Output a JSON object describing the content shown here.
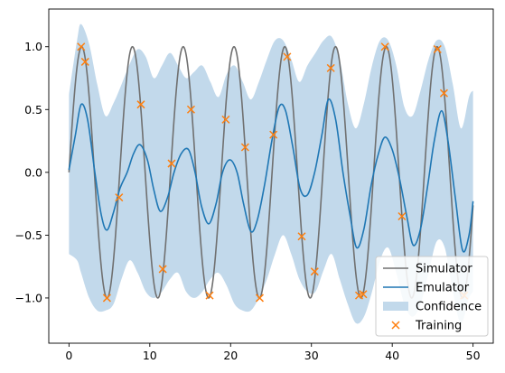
{
  "chart_data": {
    "type": "line",
    "title": "",
    "xlabel": "",
    "ylabel": "",
    "xlim": [
      -2.5,
      52.5
    ],
    "ylim": [
      -1.36,
      1.3
    ],
    "xticks": [
      0,
      10,
      20,
      30,
      40,
      50
    ],
    "yticks": [
      -1.0,
      -0.5,
      0.0,
      0.5,
      1.0
    ],
    "xtick_labels": [
      "0",
      "10",
      "20",
      "30",
      "40",
      "50"
    ],
    "ytick_labels": [
      "−1.0",
      "−0.5",
      "0.0",
      "0.5",
      "1.0"
    ],
    "grid": false,
    "legend_position": "lower-right",
    "simulator": {
      "name": "Simulator",
      "color": "#707070",
      "function": "sin",
      "frequency": 1.0,
      "x_range": [
        0,
        50
      ]
    },
    "emulator": {
      "name": "Emulator",
      "color": "#1f77b4",
      "x": [
        0,
        0.8,
        1.5,
        2.3,
        3.2,
        4.0,
        4.7,
        5.5,
        6.3,
        7.2,
        8.0,
        8.8,
        9.7,
        10.5,
        11.3,
        12.2,
        13.0,
        13.9,
        14.8,
        15.6,
        16.4,
        17.3,
        18.2,
        19.0,
        19.9,
        20.8,
        21.6,
        22.5,
        23.3,
        24.2,
        25.1,
        26.0,
        26.8,
        27.7,
        28.6,
        29.5,
        30.4,
        31.3,
        32.1,
        33.0,
        33.9,
        34.8,
        35.6,
        36.5,
        37.4,
        38.3,
        39.1,
        40.0,
        40.9,
        41.8,
        42.6,
        43.5,
        44.4,
        45.2,
        46.1,
        46.9,
        47.8,
        48.7,
        49.5,
        50.0
      ],
      "y": [
        0.02,
        0.3,
        0.54,
        0.42,
        0.0,
        -0.34,
        -0.46,
        -0.32,
        -0.13,
        0.0,
        0.15,
        0.22,
        0.1,
        -0.14,
        -0.31,
        -0.2,
        0.0,
        0.15,
        0.18,
        0.0,
        -0.27,
        -0.41,
        -0.25,
        0.0,
        0.1,
        0.0,
        -0.25,
        -0.47,
        -0.38,
        -0.1,
        0.25,
        0.52,
        0.49,
        0.2,
        -0.13,
        -0.18,
        0.0,
        0.3,
        0.58,
        0.42,
        0.0,
        -0.35,
        -0.6,
        -0.45,
        -0.1,
        0.15,
        0.28,
        0.18,
        -0.05,
        -0.35,
        -0.58,
        -0.45,
        -0.1,
        0.25,
        0.49,
        0.25,
        -0.2,
        -0.62,
        -0.5,
        -0.23
      ],
      "width": 1.6
    },
    "confidence": {
      "name": "Confidence",
      "color": "#c2d9eb",
      "x": [
        0,
        1.0,
        1.5,
        2.5,
        3.5,
        4.5,
        5.5,
        6.5,
        7.5,
        8.5,
        9.5,
        10.5,
        11.5,
        12.5,
        13.5,
        14.5,
        15.5,
        16.5,
        17.5,
        18.5,
        19.5,
        20.5,
        21.5,
        22.5,
        23.5,
        24.5,
        25.5,
        26.5,
        27.5,
        28.5,
        29.5,
        30.5,
        31.5,
        32.5,
        33.5,
        34.5,
        35.5,
        36.5,
        37.5,
        38.5,
        39.5,
        40.5,
        41.5,
        42.5,
        43.5,
        44.5,
        45.5,
        46.5,
        47.5,
        48.5,
        49.5,
        50.0
      ],
      "upper": [
        0.62,
        1.05,
        1.18,
        1.02,
        0.7,
        0.45,
        0.55,
        0.7,
        0.86,
        0.98,
        0.92,
        0.75,
        0.85,
        0.95,
        0.85,
        0.75,
        0.8,
        0.85,
        0.72,
        0.6,
        0.78,
        0.85,
        0.72,
        0.58,
        0.72,
        0.9,
        1.05,
        1.05,
        0.9,
        0.72,
        0.85,
        0.95,
        1.05,
        1.08,
        0.9,
        0.55,
        0.35,
        0.55,
        0.85,
        1.05,
        1.05,
        0.85,
        0.52,
        0.45,
        0.65,
        0.9,
        1.05,
        1.0,
        0.7,
        0.35,
        0.6,
        0.65
      ],
      "lower": [
        -0.65,
        -0.7,
        -0.8,
        -1.0,
        -1.1,
        -1.1,
        -1.05,
        -0.85,
        -0.7,
        -0.8,
        -0.95,
        -1.0,
        -0.95,
        -0.85,
        -0.8,
        -0.95,
        -1.0,
        -0.95,
        -0.85,
        -0.8,
        -0.9,
        -1.05,
        -1.1,
        -1.1,
        -1.0,
        -0.85,
        -0.65,
        -0.5,
        -0.65,
        -0.85,
        -0.95,
        -0.95,
        -0.78,
        -0.65,
        -0.85,
        -1.05,
        -1.2,
        -1.15,
        -0.95,
        -0.7,
        -0.6,
        -0.8,
        -1.05,
        -1.15,
        -1.05,
        -0.8,
        -0.55,
        -0.6,
        -0.95,
        -1.2,
        -1.0,
        -0.95
      ]
    },
    "training": {
      "name": "Training",
      "color": "#ff7f0e",
      "x": [
        1.5,
        2.0,
        4.7,
        6.2,
        8.9,
        11.6,
        12.7,
        15.1,
        17.4,
        19.4,
        21.8,
        23.6,
        25.3,
        27.0,
        28.8,
        30.4,
        32.4,
        35.9,
        36.4,
        39.1,
        41.2,
        45.6,
        46.4,
        48.9
      ],
      "y": [
        1.0,
        0.88,
        -1.0,
        -0.2,
        0.54,
        -0.77,
        0.07,
        0.5,
        -0.98,
        0.42,
        0.2,
        -1.0,
        0.3,
        0.92,
        -0.51,
        -0.79,
        0.83,
        -0.98,
        -0.97,
        1.0,
        -0.35,
        0.98,
        0.63,
        -0.98
      ]
    }
  }
}
